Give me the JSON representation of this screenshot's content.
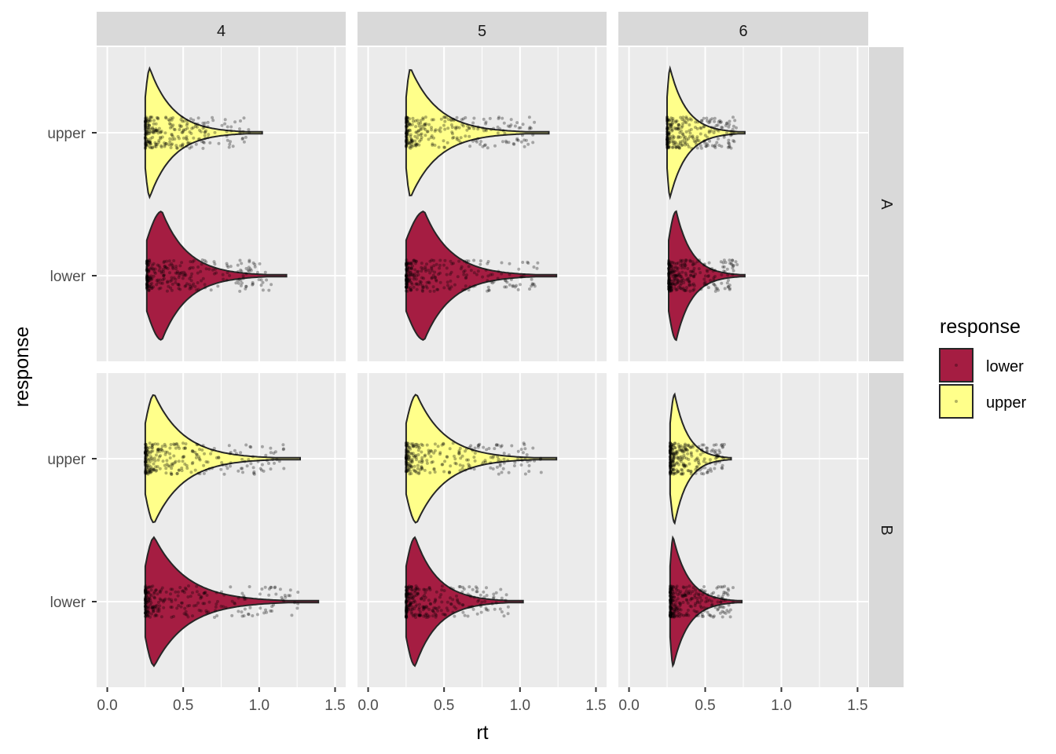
{
  "chart_data": {
    "type": "violin",
    "xlabel": "rt",
    "ylabel": "response",
    "xlim": [
      -0.07,
      1.57
    ],
    "x_ticks": [
      "0.0",
      "0.5",
      "1.0",
      "1.5"
    ],
    "x_tick_values": [
      0.0,
      0.5,
      1.0,
      1.5
    ],
    "x_minor_ticks": [
      0.25,
      0.75,
      1.25
    ],
    "categories": [
      "upper",
      "lower"
    ],
    "col_facets": [
      "4",
      "5",
      "6"
    ],
    "row_facets": [
      "A",
      "B"
    ],
    "grid": true,
    "legend": {
      "title": "response",
      "position": "right",
      "entries": [
        {
          "label": "lower",
          "color": "#A51D42"
        },
        {
          "label": "upper",
          "color": "#FFFF8A"
        }
      ]
    },
    "colors": {
      "lower": "#A51D42",
      "upper": "#FFFF8A"
    },
    "panels": [
      {
        "row": "A",
        "col": "4",
        "violins": [
          {
            "category": "upper",
            "min": 0.25,
            "max": 1.02,
            "peak": 0.28
          },
          {
            "category": "lower",
            "min": 0.26,
            "max": 1.18,
            "peak": 0.36
          }
        ]
      },
      {
        "row": "A",
        "col": "5",
        "violins": [
          {
            "category": "upper",
            "min": 0.25,
            "max": 1.19,
            "peak": 0.28
          },
          {
            "category": "lower",
            "min": 0.25,
            "max": 1.24,
            "peak": 0.37
          }
        ]
      },
      {
        "row": "A",
        "col": "6",
        "violins": [
          {
            "category": "upper",
            "min": 0.25,
            "max": 0.76,
            "peak": 0.27
          },
          {
            "category": "lower",
            "min": 0.26,
            "max": 0.76,
            "peak": 0.31
          }
        ]
      },
      {
        "row": "B",
        "col": "4",
        "violins": [
          {
            "category": "upper",
            "min": 0.25,
            "max": 1.27,
            "peak": 0.31
          },
          {
            "category": "lower",
            "min": 0.25,
            "max": 1.39,
            "peak": 0.31
          }
        ]
      },
      {
        "row": "B",
        "col": "5",
        "violins": [
          {
            "category": "upper",
            "min": 0.25,
            "max": 1.24,
            "peak": 0.32
          },
          {
            "category": "lower",
            "min": 0.25,
            "max": 1.02,
            "peak": 0.31
          }
        ]
      },
      {
        "row": "B",
        "col": "6",
        "violins": [
          {
            "category": "upper",
            "min": 0.27,
            "max": 0.67,
            "peak": 0.3
          },
          {
            "category": "lower",
            "min": 0.27,
            "max": 0.74,
            "peak": 0.29
          }
        ]
      }
    ]
  }
}
